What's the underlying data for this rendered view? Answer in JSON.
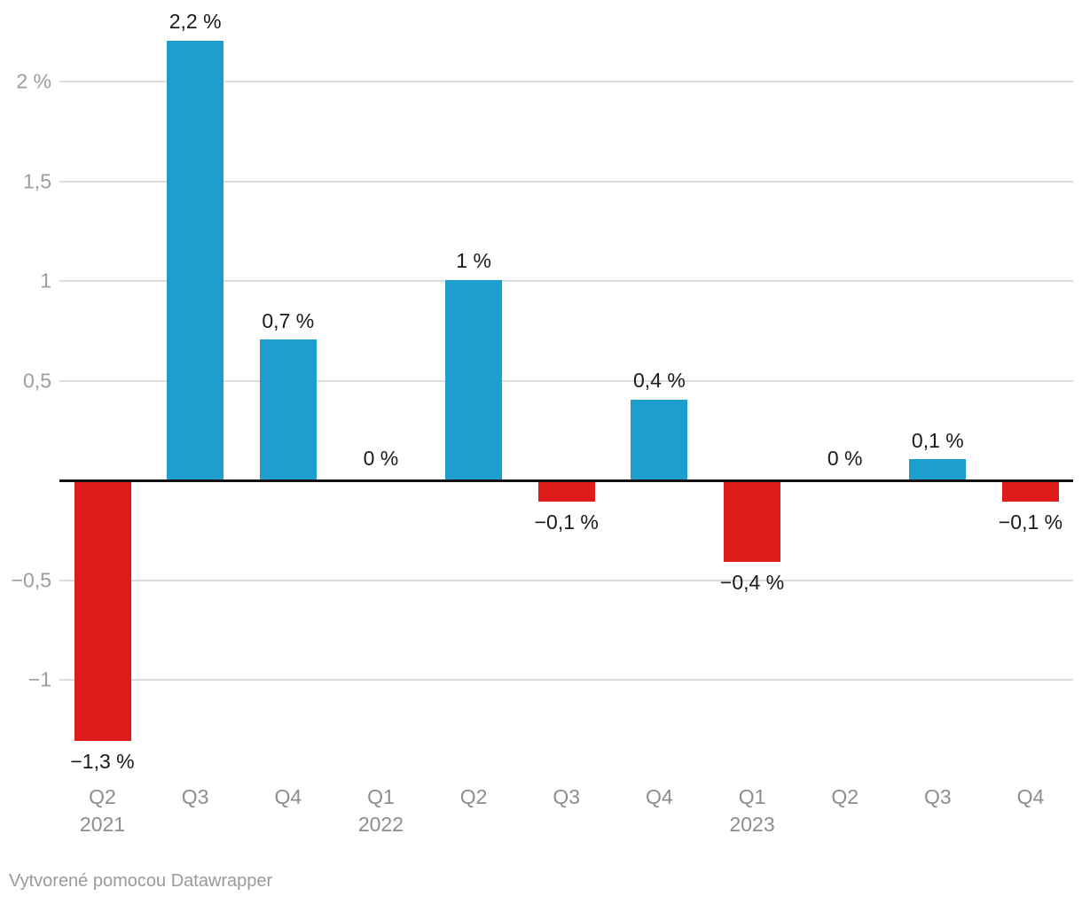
{
  "chart_data": {
    "type": "bar",
    "categories": [
      "Q2",
      "Q3",
      "Q4",
      "Q1",
      "Q2",
      "Q3",
      "Q4",
      "Q1",
      "Q2",
      "Q3",
      "Q4"
    ],
    "year_markers": [
      {
        "index": 0,
        "year": "2021"
      },
      {
        "index": 3,
        "year": "2022"
      },
      {
        "index": 7,
        "year": "2023"
      }
    ],
    "values": [
      -1.3,
      2.2,
      0.7,
      0,
      1,
      -0.1,
      0.4,
      -0.4,
      0,
      0.1,
      -0.1
    ],
    "value_labels": [
      "−1,3 %",
      "2,2 %",
      "0,7 %",
      "0 %",
      "1 %",
      "−0,1 %",
      "0,4 %",
      "−0,4 %",
      "0 %",
      "0,1 %",
      "−0,1 %"
    ],
    "y_ticks": [
      {
        "value": 2,
        "label": "2 %"
      },
      {
        "value": 1.5,
        "label": "1,5"
      },
      {
        "value": 1,
        "label": "1"
      },
      {
        "value": 0.5,
        "label": "0,5"
      },
      {
        "value": -0.5,
        "label": "−0,5"
      },
      {
        "value": -1,
        "label": "−1"
      }
    ],
    "ylim": [
      -1.45,
      2.4
    ],
    "grid": true,
    "legend": false,
    "title": "",
    "xlabel": "",
    "ylabel": "",
    "colors": {
      "positive_bar": "#1d9ecd",
      "negative_bar": "#e01b1b",
      "zero_axis": "#111111",
      "gridline": "#dddddd",
      "value_label_text": "#1a1a1a",
      "tick_text": "#9d9d9d",
      "x_label_text": "#8d8d8d"
    }
  },
  "footer": {
    "attribution": "Vytvorené pomocou Datawrapper"
  }
}
